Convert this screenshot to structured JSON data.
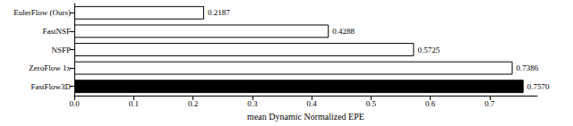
{
  "chart_data": {
    "type": "bar",
    "orientation": "horizontal",
    "categories": [
      "EulerFlow (Ours)",
      "FastNSF",
      "NSFP",
      "ZeroFlow 1x",
      "FastFlow3D"
    ],
    "values": [
      0.2187,
      0.4288,
      0.5725,
      0.7386,
      0.757
    ],
    "value_labels": [
      "0.2187",
      "0.4288",
      "0.5725",
      "0.7386",
      "0.7570"
    ],
    "colors": [
      "#ffffff",
      "#ffffff",
      "#ffffff",
      "#ffffff",
      "#000000"
    ],
    "data_labels": true,
    "x_label": "mean Dynamic Normalized EPE",
    "xlim": [
      0,
      0.78
    ],
    "xticks": [
      {
        "value": 0,
        "label": "0.0"
      },
      0.1,
      0.2,
      0.3,
      0.4,
      0.5,
      0.6,
      0.7
    ],
    "grid": false
  }
}
